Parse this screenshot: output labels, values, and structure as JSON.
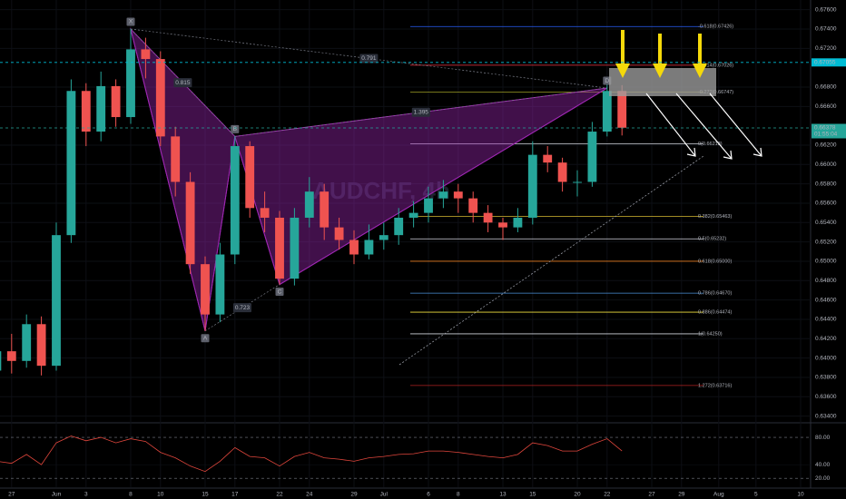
{
  "chart_data": {
    "type": "candlestick",
    "watermark": "AUDCHF, 4h",
    "x": [
      -4,
      -3,
      -2,
      -1,
      0,
      1,
      2,
      3,
      4,
      5,
      6,
      7,
      8,
      9,
      10,
      11,
      12,
      13,
      14,
      15,
      16,
      17,
      18,
      19,
      20,
      21,
      22,
      23,
      24,
      25,
      26,
      27,
      28,
      29,
      30,
      31,
      32,
      33,
      34,
      35,
      36,
      37,
      38
    ],
    "open": [
      0.6387,
      0.6407,
      0.6397,
      0.6435,
      0.6392,
      0.6527,
      0.6676,
      0.6634,
      0.6681,
      0.6649,
      0.6719,
      0.6709,
      0.6629,
      0.6582,
      0.6497,
      0.6445,
      0.6507,
      0.6619,
      0.6555,
      0.6545,
      0.6482,
      0.6545,
      0.6572,
      0.6535,
      0.6522,
      0.6507,
      0.6522,
      0.6527,
      0.6545,
      0.655,
      0.6565,
      0.6572,
      0.6565,
      0.655,
      0.654,
      0.6535,
      0.6545,
      0.661,
      0.6602,
      0.6582,
      0.6582,
      0.6634,
      0.6676
    ],
    "high": [
      0.6417,
      0.6425,
      0.6445,
      0.6443,
      0.654,
      0.6688,
      0.6684,
      0.6696,
      0.6688,
      0.674,
      0.6731,
      0.6717,
      0.6639,
      0.6592,
      0.6505,
      0.6519,
      0.6629,
      0.6624,
      0.6572,
      0.6552,
      0.6555,
      0.6587,
      0.658,
      0.6545,
      0.6532,
      0.6538,
      0.654,
      0.6555,
      0.6562,
      0.6577,
      0.6584,
      0.658,
      0.6572,
      0.6558,
      0.6545,
      0.6555,
      0.6624,
      0.6619,
      0.6607,
      0.6594,
      0.6644,
      0.6688,
      0.6682
    ],
    "low": [
      0.6374,
      0.6384,
      0.639,
      0.6382,
      0.6387,
      0.6519,
      0.6619,
      0.6624,
      0.6639,
      0.6642,
      0.6689,
      0.6619,
      0.6567,
      0.6487,
      0.6428,
      0.6437,
      0.6497,
      0.6545,
      0.653,
      0.6476,
      0.6475,
      0.6535,
      0.6522,
      0.6512,
      0.6497,
      0.6502,
      0.6512,
      0.6517,
      0.6535,
      0.654,
      0.6555,
      0.655,
      0.654,
      0.653,
      0.6522,
      0.653,
      0.6538,
      0.6592,
      0.6572,
      0.6567,
      0.6577,
      0.6629,
      0.663
    ],
    "close": [
      0.6407,
      0.6397,
      0.6435,
      0.6392,
      0.6527,
      0.6676,
      0.6634,
      0.6681,
      0.6649,
      0.6719,
      0.6709,
      0.6629,
      0.6582,
      0.6497,
      0.6445,
      0.6507,
      0.6619,
      0.6555,
      0.6545,
      0.6482,
      0.6545,
      0.6572,
      0.6535,
      0.6522,
      0.6507,
      0.6522,
      0.6527,
      0.6545,
      0.655,
      0.6565,
      0.6572,
      0.6565,
      0.655,
      0.654,
      0.6535,
      0.6545,
      0.661,
      0.6602,
      0.6582,
      0.6582,
      0.6634,
      0.6676,
      0.6638
    ],
    "up_color": "#26a69a",
    "down_color": "#ef5350",
    "xlim": [
      -3.78,
      50.67
    ],
    "xticks": [
      {
        "value": -3,
        "label": "27"
      },
      {
        "value": 0,
        "label": "Jun"
      },
      {
        "value": 2,
        "label": "3"
      },
      {
        "value": 5,
        "label": "8"
      },
      {
        "value": 7,
        "label": "10"
      },
      {
        "value": 10,
        "label": "15"
      },
      {
        "value": 12,
        "label": "17"
      },
      {
        "value": 15,
        "label": "22"
      },
      {
        "value": 17,
        "label": "24"
      },
      {
        "value": 20,
        "label": "29"
      },
      {
        "value": 22,
        "label": "Jul"
      },
      {
        "value": 25,
        "label": "6"
      },
      {
        "value": 27,
        "label": "8"
      },
      {
        "value": 30,
        "label": "13"
      },
      {
        "value": 32,
        "label": "15"
      },
      {
        "value": 35,
        "label": "20"
      },
      {
        "value": 37,
        "label": "22"
      },
      {
        "value": 40,
        "label": "27"
      },
      {
        "value": 42,
        "label": "29"
      },
      {
        "value": 44.5,
        "label": "Aug"
      },
      {
        "value": 47,
        "label": "5"
      },
      {
        "value": 50,
        "label": "10"
      }
    ],
    "ylim": [
      0.6334,
      0.677
    ],
    "yticks": [
      {
        "value": 0.676,
        "label": "0.67600"
      },
      {
        "value": 0.674,
        "label": "0.67400"
      },
      {
        "value": 0.672,
        "label": "0.67200"
      },
      {
        "value": 0.668,
        "label": "0.66800"
      },
      {
        "value": 0.666,
        "label": "0.66600"
      },
      {
        "value": 0.662,
        "label": "0.66200"
      },
      {
        "value": 0.66,
        "label": "0.66000"
      },
      {
        "value": 0.658,
        "label": "0.65800"
      },
      {
        "value": 0.656,
        "label": "0.65600"
      },
      {
        "value": 0.654,
        "label": "0.65400"
      },
      {
        "value": 0.652,
        "label": "0.65200"
      },
      {
        "value": 0.65,
        "label": "0.65000"
      },
      {
        "value": 0.648,
        "label": "0.64800"
      },
      {
        "value": 0.646,
        "label": "0.64600"
      },
      {
        "value": 0.644,
        "label": "0.64400"
      },
      {
        "value": 0.642,
        "label": "0.64200"
      },
      {
        "value": 0.64,
        "label": "0.64000"
      },
      {
        "value": 0.638,
        "label": "0.63800"
      },
      {
        "value": 0.636,
        "label": "0.63600"
      },
      {
        "value": 0.634,
        "label": "0.63400"
      }
    ],
    "grid": true,
    "price_lines": [
      {
        "value": 0.67055,
        "label": "0.67055",
        "color": "#00bcd4"
      },
      {
        "value": 0.66378,
        "label": "0.66378",
        "sublabel": "01:55:04",
        "color": "#26a69a"
      }
    ],
    "fib": [
      {
        "value": 0.67426,
        "label": "-0.618(0.67426)",
        "color": "#2962ff"
      },
      {
        "value": 0.67026,
        "label": "-0.414(0.67026)",
        "color": "#f23645"
      },
      {
        "value": 0.66747,
        "label": "-0.272(0.66747)",
        "color": "#9e9d24"
      },
      {
        "value": 0.66213,
        "label": "0(0.66213)",
        "color": "#d1d4dc"
      },
      {
        "value": 0.65463,
        "label": "0.382(0.65463)",
        "color": "#b79f2a"
      },
      {
        "value": 0.65232,
        "label": "0.5(0.65232)",
        "color": "#d1d4dc"
      },
      {
        "value": 0.65,
        "label": "0.618(0.65000)",
        "color": "#e67e22"
      },
      {
        "value": 0.6467,
        "label": "0.786(0.64670)",
        "color": "#4a90d9"
      },
      {
        "value": 0.64474,
        "label": "0.886(0.64474)",
        "color": "#f0e040"
      },
      {
        "value": 0.6425,
        "label": "1(0.64250)",
        "color": "#d1d4dc"
      },
      {
        "value": 0.63716,
        "label": "1.272(0.63716)",
        "color": "#b22222"
      }
    ],
    "pattern": {
      "color": "#9c27b0",
      "points": [
        {
          "label": "X",
          "x": 5,
          "price": 0.674
        },
        {
          "label": "A",
          "x": 10,
          "price": 0.6428
        },
        {
          "label": "B",
          "x": 12,
          "price": 0.6629
        },
        {
          "label": "C",
          "x": 15,
          "price": 0.6476
        },
        {
          "label": "D",
          "x": 37,
          "price": 0.6679
        }
      ],
      "ratios": [
        0.815,
        0.791,
        0.723,
        1.395
      ]
    },
    "rsi": {
      "color": "#e0463c",
      "values": [
        45,
        42,
        55,
        40,
        72,
        82,
        75,
        80,
        72,
        78,
        74,
        58,
        50,
        38,
        30,
        45,
        65,
        52,
        50,
        38,
        52,
        58,
        50,
        48,
        45,
        50,
        52,
        55,
        56,
        60,
        60,
        58,
        55,
        52,
        50,
        55,
        72,
        68,
        60,
        60,
        70,
        78,
        60
      ],
      "ylim": [
        7,
        100
      ],
      "yticks": [
        {
          "value": 80,
          "label": "80.00"
        },
        {
          "value": 40,
          "label": "40.00"
        },
        {
          "value": 20,
          "label": "20.00"
        }
      ]
    }
  }
}
